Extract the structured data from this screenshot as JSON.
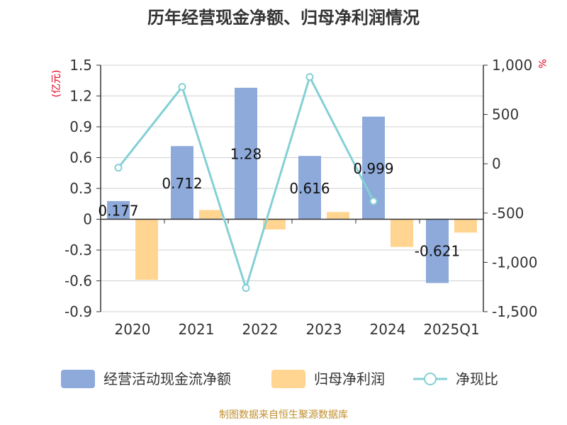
{
  "chart_data": {
    "type": "bar",
    "title": "历年经营现金净额、归母净利润情况",
    "categories": [
      "2020",
      "2021",
      "2022",
      "2023",
      "2024",
      "2025Q1"
    ],
    "left_axis": {
      "unit": "(亿元)",
      "ylim": [
        -0.9,
        1.5
      ],
      "ticks": [
        1.5,
        1.2,
        0.9,
        0.6,
        0.3,
        0,
        -0.3,
        -0.6,
        -0.9
      ]
    },
    "right_axis": {
      "unit": "%",
      "ylim": [
        -1500,
        1000
      ],
      "ticks": [
        1000,
        500,
        0,
        -500,
        -1000,
        -1500
      ],
      "tick_labels": [
        "1,000",
        "500",
        "0",
        "-500",
        "-1,000",
        "-1,500"
      ]
    },
    "series": [
      {
        "name": "经营活动现金流净额",
        "kind": "bar",
        "axis": "left",
        "color": "#8eaadb",
        "values": [
          0.177,
          0.712,
          1.28,
          0.616,
          0.999,
          -0.621
        ],
        "labels": [
          "0.177",
          "0.712",
          "1.28",
          "0.616",
          "0.999",
          "-0.621"
        ]
      },
      {
        "name": "归母净利润",
        "kind": "bar",
        "axis": "left",
        "color": "#ffd591",
        "values": [
          -0.59,
          0.09,
          -0.1,
          0.07,
          -0.27,
          -0.13
        ]
      },
      {
        "name": "净现比",
        "kind": "line",
        "axis": "right",
        "color": "#84d0d5",
        "values": [
          -40,
          780,
          -1260,
          880,
          -380,
          null
        ]
      }
    ],
    "grid": true,
    "legend": "bottom"
  },
  "source": "制图数据来自恒生聚源数据库"
}
